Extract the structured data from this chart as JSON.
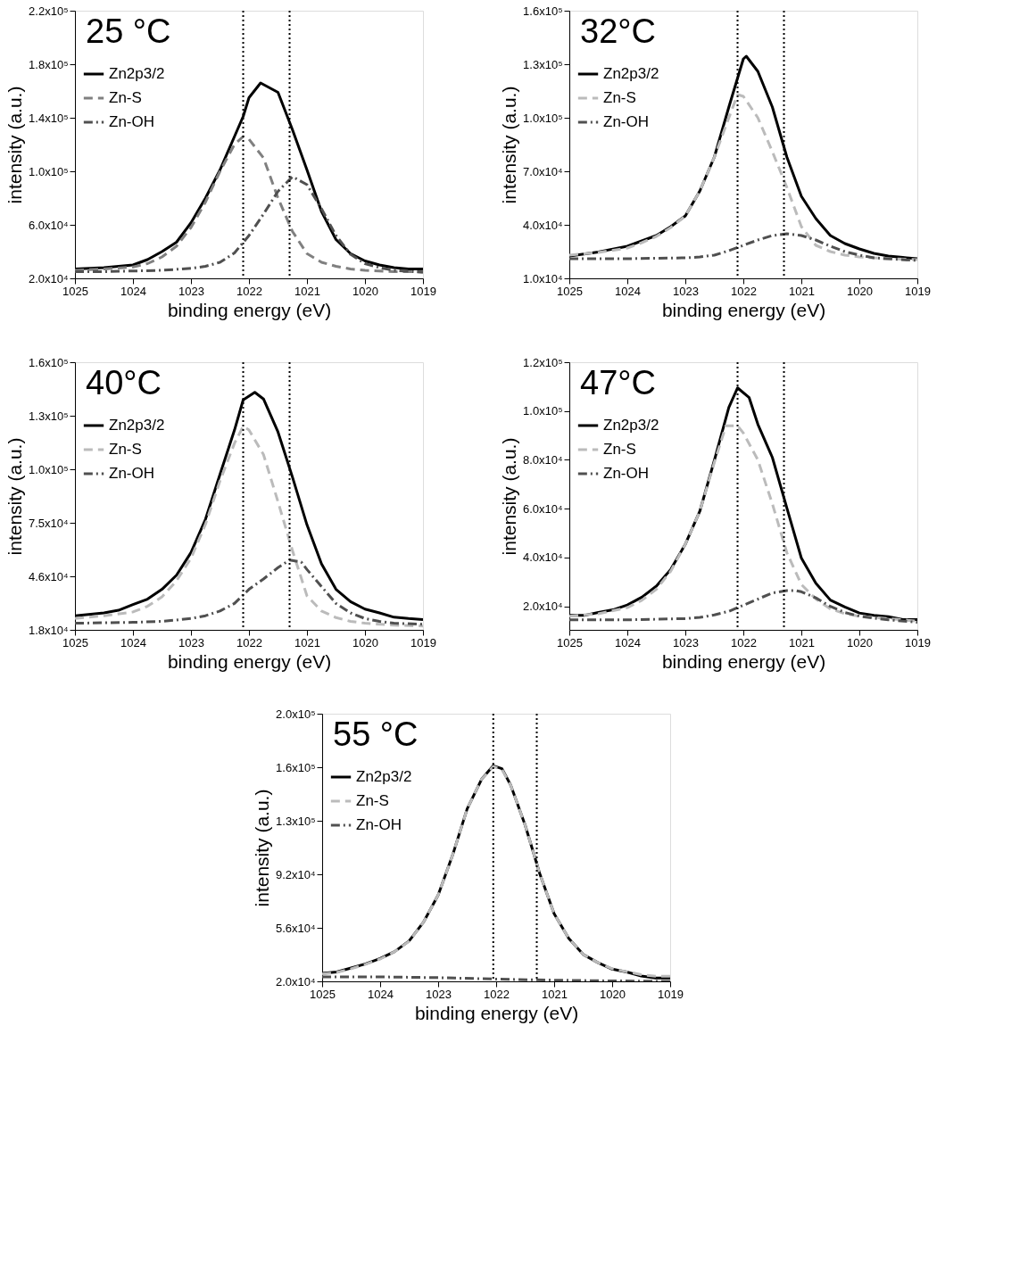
{
  "chart_data": [
    {
      "type": "line",
      "title": "25 °C",
      "xlabel": "binding energy (eV)",
      "ylabel": "intensity (a.u.)",
      "xlim": [
        1025,
        1019
      ],
      "xticks": [
        1025,
        1024,
        1023,
        1022,
        1021,
        1020,
        1019
      ],
      "ylim": [
        20000,
        220000
      ],
      "yticks": [
        {
          "value": 20000,
          "label": "2.0x10⁴"
        },
        {
          "value": 60000,
          "label": "6.0x10⁴"
        },
        {
          "value": 100000,
          "label": "1.0x10⁵"
        },
        {
          "value": 140000,
          "label": "1.4x10⁵"
        },
        {
          "value": 180000,
          "label": "1.8x10⁵"
        },
        {
          "value": 220000,
          "label": "2.2x10⁵"
        }
      ],
      "legend": "top left",
      "grid": false,
      "ref_lines": [
        {
          "axis": "x",
          "value": 1022.1,
          "color": "#000000",
          "line_style": "dotted"
        },
        {
          "axis": "x",
          "value": 1021.3,
          "color": "#000000",
          "line_style": "dotted"
        }
      ],
      "series": [
        {
          "name": "Zn2p3/2",
          "color": "#000000",
          "line_style": "solid",
          "x": [
            1025,
            1024.5,
            1024,
            1023.75,
            1023.5,
            1023.25,
            1023,
            1022.75,
            1022.5,
            1022.25,
            1022.1,
            1022,
            1021.8,
            1021.5,
            1021.25,
            1021,
            1020.75,
            1020.5,
            1020.25,
            1020,
            1019.75,
            1019.5,
            1019.25,
            1019
          ],
          "values": [
            27000,
            28000,
            30000,
            34000,
            40000,
            47000,
            61500,
            80000,
            101000,
            126000,
            141000,
            155000,
            166000,
            159000,
            131000,
            101000,
            70000,
            49000,
            38500,
            33000,
            30000,
            28000,
            27000,
            27000
          ]
        },
        {
          "name": "Zn-S",
          "color": "#808080",
          "line_style": "dashed",
          "x": [
            1025,
            1024.5,
            1024,
            1023.75,
            1023.5,
            1023.25,
            1023,
            1022.75,
            1022.5,
            1022.25,
            1022.1,
            1022,
            1021.75,
            1021.5,
            1021.25,
            1021,
            1020.75,
            1020.5,
            1020.25,
            1020,
            1019.5,
            1019
          ],
          "values": [
            26000,
            27000,
            28500,
            31000,
            36000,
            44000,
            58000,
            77000,
            100000,
            120000,
            126000,
            124000,
            110000,
            80000,
            55000,
            38500,
            32000,
            29000,
            27000,
            26000,
            25000,
            25000
          ]
        },
        {
          "name": "Zn-OH",
          "color": "#505050",
          "line_style": "dashdot",
          "x": [
            1025,
            1024.5,
            1024,
            1023.5,
            1023,
            1022.75,
            1022.5,
            1022.25,
            1022,
            1021.75,
            1021.5,
            1021.25,
            1021,
            1020.75,
            1020.5,
            1020.25,
            1020,
            1019.75,
            1019.5,
            1019
          ],
          "values": [
            25000,
            25000,
            25500,
            26000,
            27500,
            29000,
            32000,
            39000,
            52000,
            68000,
            85000,
            96000,
            90000,
            72000,
            52000,
            38000,
            31000,
            28000,
            26000,
            24500
          ]
        }
      ]
    },
    {
      "type": "line",
      "title": "32°C",
      "xlabel": "binding energy (eV)",
      "ylabel": "intensity (a.u.)",
      "xlim": [
        1025,
        1019
      ],
      "xticks": [
        1025,
        1024,
        1023,
        1022,
        1021,
        1020,
        1019
      ],
      "ylim": [
        10000,
        160000
      ],
      "yticks": [
        {
          "value": 10000,
          "label": "1.0x10⁴"
        },
        {
          "value": 40000,
          "label": "4.0x10⁴"
        },
        {
          "value": 70000,
          "label": "7.0x10⁴"
        },
        {
          "value": 100000,
          "label": "1.0x10⁵"
        },
        {
          "value": 130000,
          "label": "1.3x10⁵"
        },
        {
          "value": 160000,
          "label": "1.6x10⁵"
        }
      ],
      "legend": "top left",
      "grid": false,
      "ref_lines": [
        {
          "axis": "x",
          "value": 1022.1,
          "color": "#000000",
          "line_style": "dotted"
        },
        {
          "axis": "x",
          "value": 1021.3,
          "color": "#000000",
          "line_style": "dotted"
        }
      ],
      "series": [
        {
          "name": "Zn2p3/2",
          "color": "#000000",
          "line_style": "solid",
          "x": [
            1025,
            1024.5,
            1024,
            1023.75,
            1023.5,
            1023.25,
            1023,
            1022.75,
            1022.5,
            1022.25,
            1022,
            1021.95,
            1021.75,
            1021.5,
            1021.25,
            1021,
            1020.75,
            1020.5,
            1020.25,
            1020,
            1019.75,
            1019.5,
            1019.25,
            1019
          ],
          "values": [
            22500,
            24800,
            28000,
            31000,
            34000,
            39000,
            45000,
            59000,
            78000,
            106000,
            133000,
            134500,
            126000,
            106000,
            78000,
            56000,
            43500,
            34000,
            29500,
            26500,
            24000,
            22500,
            21700,
            21000
          ]
        },
        {
          "name": "Zn-S",
          "color": "#bbbbbb",
          "line_style": "dashed",
          "x": [
            1025,
            1024.5,
            1024,
            1023.75,
            1023.5,
            1023.25,
            1023,
            1022.75,
            1022.5,
            1022.25,
            1022.1,
            1022,
            1021.75,
            1021.5,
            1021.25,
            1021,
            1020.75,
            1020.5,
            1020.25,
            1020,
            1019.5,
            1019
          ],
          "values": [
            23000,
            24500,
            27000,
            30000,
            33500,
            38500,
            45000,
            59000,
            78000,
            100000,
            113000,
            112000,
            100000,
            81000,
            61000,
            39000,
            28500,
            25000,
            23000,
            22000,
            21000,
            20500
          ]
        },
        {
          "name": "Zn-OH",
          "color": "#505050",
          "line_style": "dashdot",
          "x": [
            1025,
            1024,
            1023,
            1022.75,
            1022.5,
            1022.25,
            1022,
            1021.75,
            1021.5,
            1021.25,
            1021,
            1020.75,
            1020.5,
            1020.25,
            1020,
            1019.75,
            1019.5,
            1019
          ],
          "values": [
            21000,
            21000,
            21500,
            22000,
            23000,
            25500,
            28500,
            31500,
            34000,
            35000,
            34000,
            31500,
            28000,
            25000,
            23000,
            21500,
            21000,
            20000
          ]
        }
      ]
    },
    {
      "type": "line",
      "title": "40°C",
      "xlabel": "binding energy (eV)",
      "ylabel": "intensity (a.u.)",
      "xlim": [
        1025,
        1019
      ],
      "xticks": [
        1025,
        1024,
        1023,
        1022,
        1021,
        1020,
        1019
      ],
      "ylim": [
        18000,
        160000
      ],
      "yticks": [
        {
          "value": 18000,
          "label": "1.8x10⁴"
        },
        {
          "value": 46400,
          "label": "4.6x10⁴"
        },
        {
          "value": 74800,
          "label": "7.5x10⁴"
        },
        {
          "value": 103200,
          "label": "1.0x10⁵"
        },
        {
          "value": 131600,
          "label": "1.3x10⁵"
        },
        {
          "value": 160000,
          "label": "1.6x10⁵"
        }
      ],
      "legend": "top left",
      "grid": false,
      "ref_lines": [
        {
          "axis": "x",
          "value": 1022.1,
          "color": "#000000",
          "line_style": "dotted"
        },
        {
          "axis": "x",
          "value": 1021.3,
          "color": "#000000",
          "line_style": "dotted"
        }
      ],
      "series": [
        {
          "name": "Zn2p3/2",
          "color": "#000000",
          "line_style": "solid",
          "x": [
            1025,
            1024.5,
            1024.25,
            1024,
            1023.75,
            1023.5,
            1023.25,
            1023,
            1022.75,
            1022.5,
            1022.25,
            1022.1,
            1021.9,
            1021.75,
            1021.5,
            1021.25,
            1021,
            1020.75,
            1020.5,
            1020.25,
            1020,
            1019.75,
            1019.5,
            1019.25,
            1019
          ],
          "values": [
            25400,
            27000,
            28400,
            31400,
            34300,
            39500,
            47000,
            59000,
            76700,
            100500,
            124000,
            140000,
            144000,
            140500,
            123000,
            99000,
            73700,
            53000,
            39500,
            33000,
            29000,
            27000,
            24700,
            24000,
            23500
          ]
        },
        {
          "name": "Zn-S",
          "color": "#bbbbbb",
          "line_style": "dashed",
          "x": [
            1025,
            1024.5,
            1024,
            1023.75,
            1023.5,
            1023.25,
            1023,
            1022.75,
            1022.5,
            1022.25,
            1022.1,
            1022,
            1021.75,
            1021.5,
            1021.25,
            1021,
            1020.75,
            1020.5,
            1020.25,
            1020,
            1019.5,
            1019
          ],
          "values": [
            24000,
            25500,
            27500,
            30500,
            35500,
            44000,
            56000,
            74000,
            97000,
            117000,
            126000,
            124000,
            111000,
            86000,
            60000,
            36000,
            28000,
            24500,
            22500,
            21500,
            20500,
            20000
          ]
        },
        {
          "name": "Zn-OH",
          "color": "#505050",
          "line_style": "dashdot",
          "x": [
            1025,
            1024,
            1023.5,
            1023,
            1022.75,
            1022.5,
            1022.25,
            1022,
            1021.75,
            1021.5,
            1021.3,
            1021.1,
            1021,
            1020.75,
            1020.5,
            1020.25,
            1020,
            1019.75,
            1019.5,
            1019
          ],
          "values": [
            21500,
            22000,
            22500,
            24000,
            25500,
            28000,
            32000,
            39500,
            45000,
            51000,
            55000,
            54000,
            50000,
            41000,
            32000,
            27000,
            24000,
            22500,
            21500,
            21000
          ]
        }
      ]
    },
    {
      "type": "line",
      "title": "47°C",
      "xlabel": "binding energy (eV)",
      "ylabel": "intensity (a.u.)",
      "xlim": [
        1025,
        1019
      ],
      "xticks": [
        1025,
        1024,
        1023,
        1022,
        1021,
        1020,
        1019
      ],
      "ylim": [
        10400,
        120000
      ],
      "yticks": [
        {
          "value": 20000,
          "label": "2.0x10⁴"
        },
        {
          "value": 40000,
          "label": "4.0x10⁴"
        },
        {
          "value": 60000,
          "label": "6.0x10⁴"
        },
        {
          "value": 80000,
          "label": "8.0x10⁴"
        },
        {
          "value": 100000,
          "label": "1.0x10⁵"
        },
        {
          "value": 120000,
          "label": "1.2x10⁵"
        }
      ],
      "legend": "top left",
      "grid": false,
      "ref_lines": [
        {
          "axis": "x",
          "value": 1022.1,
          "color": "#000000",
          "line_style": "dotted"
        },
        {
          "axis": "x",
          "value": 1021.3,
          "color": "#000000",
          "line_style": "dotted"
        }
      ],
      "series": [
        {
          "name": "Zn2p3/2",
          "color": "#000000",
          "line_style": "solid",
          "x": [
            1025,
            1024.75,
            1024.5,
            1024.25,
            1024,
            1023.75,
            1023.5,
            1023.25,
            1023,
            1022.75,
            1022.5,
            1022.25,
            1022.1,
            1021.9,
            1021.75,
            1021.5,
            1021.25,
            1021,
            1020.75,
            1020.5,
            1020.25,
            1020,
            1019.75,
            1019.5,
            1019.25,
            1019
          ],
          "values": [
            16300,
            16300,
            17500,
            18600,
            20600,
            23800,
            28300,
            35200,
            45500,
            59000,
            79800,
            101500,
            109500,
            105500,
            94600,
            81000,
            60300,
            39800,
            29500,
            22600,
            19800,
            17300,
            16300,
            15800,
            14600,
            14600
          ]
        },
        {
          "name": "Zn-S",
          "color": "#bbbbbb",
          "line_style": "dashed",
          "x": [
            1025,
            1024.5,
            1024,
            1023.75,
            1023.5,
            1023.25,
            1023,
            1022.75,
            1022.5,
            1022.3,
            1022.1,
            1022,
            1021.75,
            1021.5,
            1021.25,
            1021,
            1020.75,
            1020.5,
            1020.25,
            1020,
            1019.5,
            1019
          ],
          "values": [
            16000,
            17000,
            19500,
            22500,
            27000,
            34500,
            45500,
            59000,
            79000,
            94000,
            94000,
            91000,
            80000,
            62000,
            42000,
            29000,
            23000,
            19000,
            17000,
            16000,
            15000,
            14000
          ]
        },
        {
          "name": "Zn-OH",
          "color": "#505050",
          "line_style": "dashdot",
          "x": [
            1025,
            1024,
            1023,
            1022.75,
            1022.5,
            1022.25,
            1022,
            1021.75,
            1021.5,
            1021.25,
            1021.1,
            1021,
            1020.75,
            1020.5,
            1020.25,
            1020,
            1019.5,
            1019
          ],
          "values": [
            14500,
            14500,
            15000,
            15500,
            16500,
            18000,
            20500,
            23000,
            25500,
            26500,
            26500,
            26000,
            23500,
            20000,
            17500,
            16000,
            14500,
            13500
          ]
        }
      ]
    },
    {
      "type": "line",
      "title": "55 °C",
      "xlabel": "binding energy (eV)",
      "ylabel": "intensity (a.u.)",
      "xlim": [
        1025,
        1019
      ],
      "xticks": [
        1025,
        1024,
        1023,
        1022,
        1021,
        1020,
        1019
      ],
      "ylim": [
        20000,
        200000
      ],
      "yticks": [
        {
          "value": 20000,
          "label": "2.0x10⁴"
        },
        {
          "value": 56000,
          "label": "5.6x10⁴"
        },
        {
          "value": 92000,
          "label": "9.2x10⁴"
        },
        {
          "value": 128000,
          "label": "1.3x10⁵"
        },
        {
          "value": 164000,
          "label": "1.6x10⁵"
        },
        {
          "value": 200000,
          "label": "2.0x10⁵"
        }
      ],
      "legend": "top left",
      "grid": false,
      "ref_lines": [
        {
          "axis": "x",
          "value": 1022.05,
          "color": "#000000",
          "line_style": "dotted"
        },
        {
          "axis": "x",
          "value": 1021.3,
          "color": "#000000",
          "line_style": "dotted"
        }
      ],
      "series": [
        {
          "name": "Zn2p3/2",
          "color": "#000000",
          "line_style": "solid",
          "x": [
            1025,
            1024.75,
            1024.5,
            1024.25,
            1024,
            1023.75,
            1023.5,
            1023.25,
            1023,
            1022.75,
            1022.5,
            1022.25,
            1022.05,
            1021.9,
            1021.75,
            1021.5,
            1021.25,
            1021,
            1020.75,
            1020.5,
            1020.25,
            1020,
            1019.75,
            1019.5,
            1019.25,
            1019
          ],
          "values": [
            25400,
            26300,
            29000,
            31800,
            35400,
            40000,
            47200,
            60000,
            78000,
            105000,
            136000,
            156000,
            165000,
            163000,
            152000,
            125000,
            92600,
            65400,
            49000,
            38100,
            32700,
            28200,
            26300,
            23600,
            22200,
            22200
          ]
        },
        {
          "name": "Zn-S",
          "color": "#bbbbbb",
          "line_style": "dashed",
          "x": [
            1025,
            1024.75,
            1024.5,
            1024.25,
            1024,
            1023.75,
            1023.5,
            1023.25,
            1023,
            1022.75,
            1022.5,
            1022.25,
            1022.05,
            1021.9,
            1021.75,
            1021.5,
            1021.25,
            1021,
            1020.75,
            1020.5,
            1020.25,
            1020,
            1019.75,
            1019.5,
            1019.25,
            1019
          ],
          "values": [
            25000,
            26000,
            28500,
            31500,
            35000,
            40000,
            47000,
            60000,
            78000,
            105000,
            136000,
            156000,
            164500,
            162500,
            152000,
            125000,
            92600,
            65400,
            49000,
            38100,
            32700,
            28500,
            26500,
            24500,
            23500,
            23500
          ]
        },
        {
          "name": "Zn-OH",
          "color": "#505050",
          "line_style": "dashdot",
          "x": [
            1025,
            1024,
            1023,
            1022,
            1021,
            1020,
            1019
          ],
          "values": [
            23000,
            23000,
            22500,
            21500,
            20800,
            20300,
            20000
          ]
        }
      ]
    }
  ]
}
